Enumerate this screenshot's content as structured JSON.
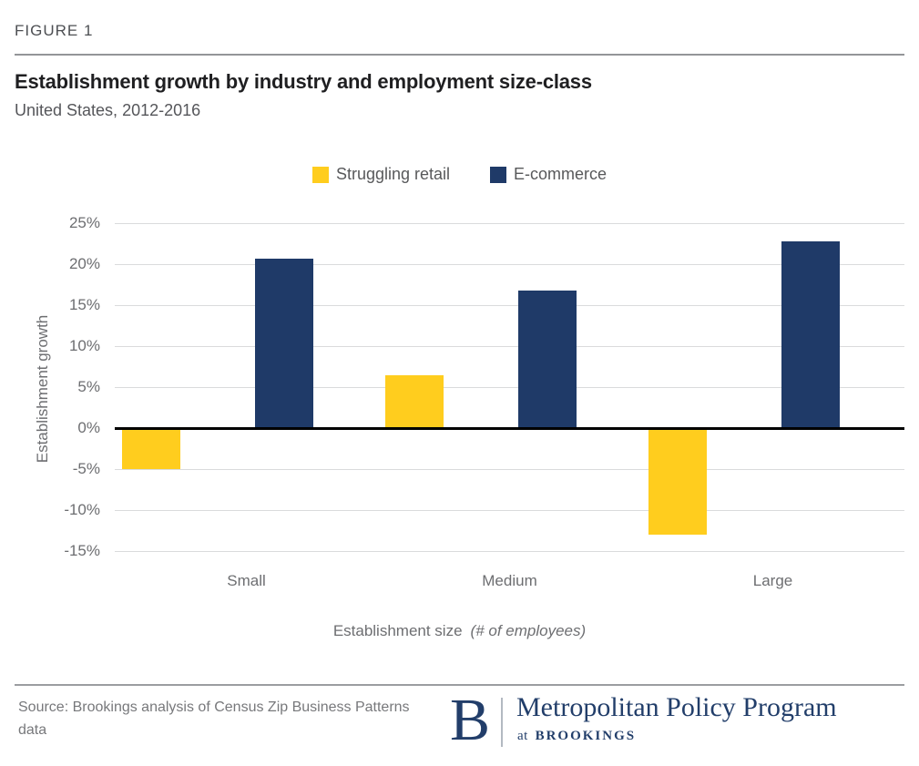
{
  "figure_label": "FIGURE 1",
  "title": "Establishment growth by industry and employment size-class",
  "subtitle": "United States, 2012-2016",
  "legend": [
    {
      "label": "Struggling retail",
      "color": "#FFCD1E"
    },
    {
      "label": "E-commerce",
      "color": "#1F3A68"
    }
  ],
  "chart_data": {
    "type": "bar",
    "categories": [
      "Small",
      "Medium",
      "Large"
    ],
    "series": [
      {
        "name": "Struggling retail",
        "color": "#FFCD1E",
        "values": [
          -5.0,
          6.5,
          -13.0
        ]
      },
      {
        "name": "E-commerce",
        "color": "#1F3A68",
        "values": [
          20.7,
          16.8,
          22.8
        ]
      }
    ],
    "title": "Establishment growth by industry and employment size-class",
    "xlabel": "Establishment size",
    "xlabel_note": "(# of employees)",
    "ylabel": "Establishment growth",
    "ylim": [
      -15,
      25
    ],
    "ytick_step": 5,
    "ytick_suffix": "%",
    "grid": true,
    "legend_position": "top"
  },
  "colors": {
    "retail_yellow": "#FFCD1E",
    "ecommerce_navy": "#1F3A68",
    "gridline": "#DADBDC",
    "zero_line": "#000000",
    "axis_text": "#6D6E71",
    "logo_navy": "#223E6A"
  },
  "footer": {
    "source": "Source: Brookings analysis of Census Zip Business Patterns data",
    "logo_b": "B",
    "logo_title": "Metropolitan Policy Program",
    "logo_at": "at",
    "logo_brookings": "BROOKINGS"
  }
}
